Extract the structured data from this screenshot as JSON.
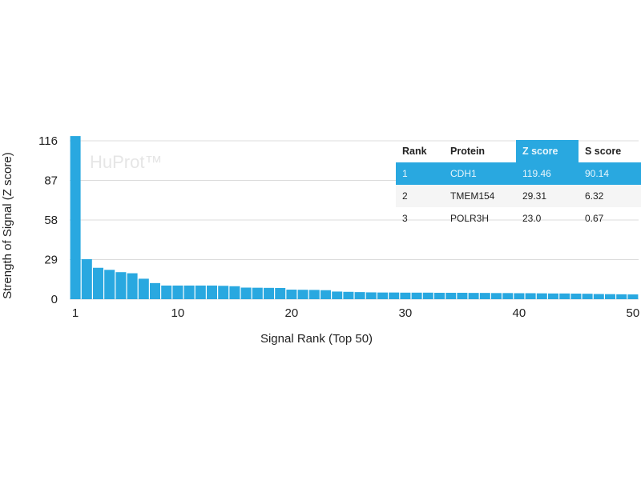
{
  "chart_data": {
    "type": "bar",
    "watermark": "HuProt™",
    "xlabel": "Signal Rank (Top 50)",
    "ylabel": "Strength of Signal (Z score)",
    "yticks": [
      0,
      29,
      58,
      87,
      116
    ],
    "xticks": [
      1,
      10,
      20,
      30,
      40,
      50
    ],
    "ylim": [
      0,
      116
    ],
    "grid": true,
    "color": "#29a8e0",
    "x": [
      1,
      2,
      3,
      4,
      5,
      6,
      7,
      8,
      9,
      10,
      11,
      12,
      13,
      14,
      15,
      16,
      17,
      18,
      19,
      20,
      21,
      22,
      23,
      24,
      25,
      26,
      27,
      28,
      29,
      30,
      31,
      32,
      33,
      34,
      35,
      36,
      37,
      38,
      39,
      40,
      41,
      42,
      43,
      44,
      45,
      46,
      47,
      48,
      49,
      50
    ],
    "values": [
      119.46,
      29.31,
      23.0,
      21.5,
      19.8,
      19.0,
      15.0,
      11.8,
      10.0,
      10.0,
      10.0,
      10.0,
      10.0,
      9.8,
      9.5,
      8.5,
      8.4,
      8.3,
      8.2,
      7.0,
      6.9,
      6.8,
      6.6,
      5.6,
      5.4,
      5.2,
      5.0,
      4.9,
      4.9,
      4.8,
      4.8,
      4.8,
      4.7,
      4.7,
      4.7,
      4.6,
      4.6,
      4.5,
      4.5,
      4.4,
      4.4,
      4.3,
      4.2,
      4.2,
      4.1,
      4.0,
      3.8,
      3.7,
      3.6,
      3.5
    ]
  },
  "table": {
    "headers": [
      "Rank",
      "Protein",
      "Z score",
      "S score"
    ],
    "rows": [
      [
        "1",
        "CDH1",
        "119.46",
        "90.14"
      ],
      [
        "2",
        "TMEM154",
        "29.31",
        "6.32"
      ],
      [
        "3",
        "POLR3H",
        "23.0",
        "0.67"
      ]
    ]
  }
}
